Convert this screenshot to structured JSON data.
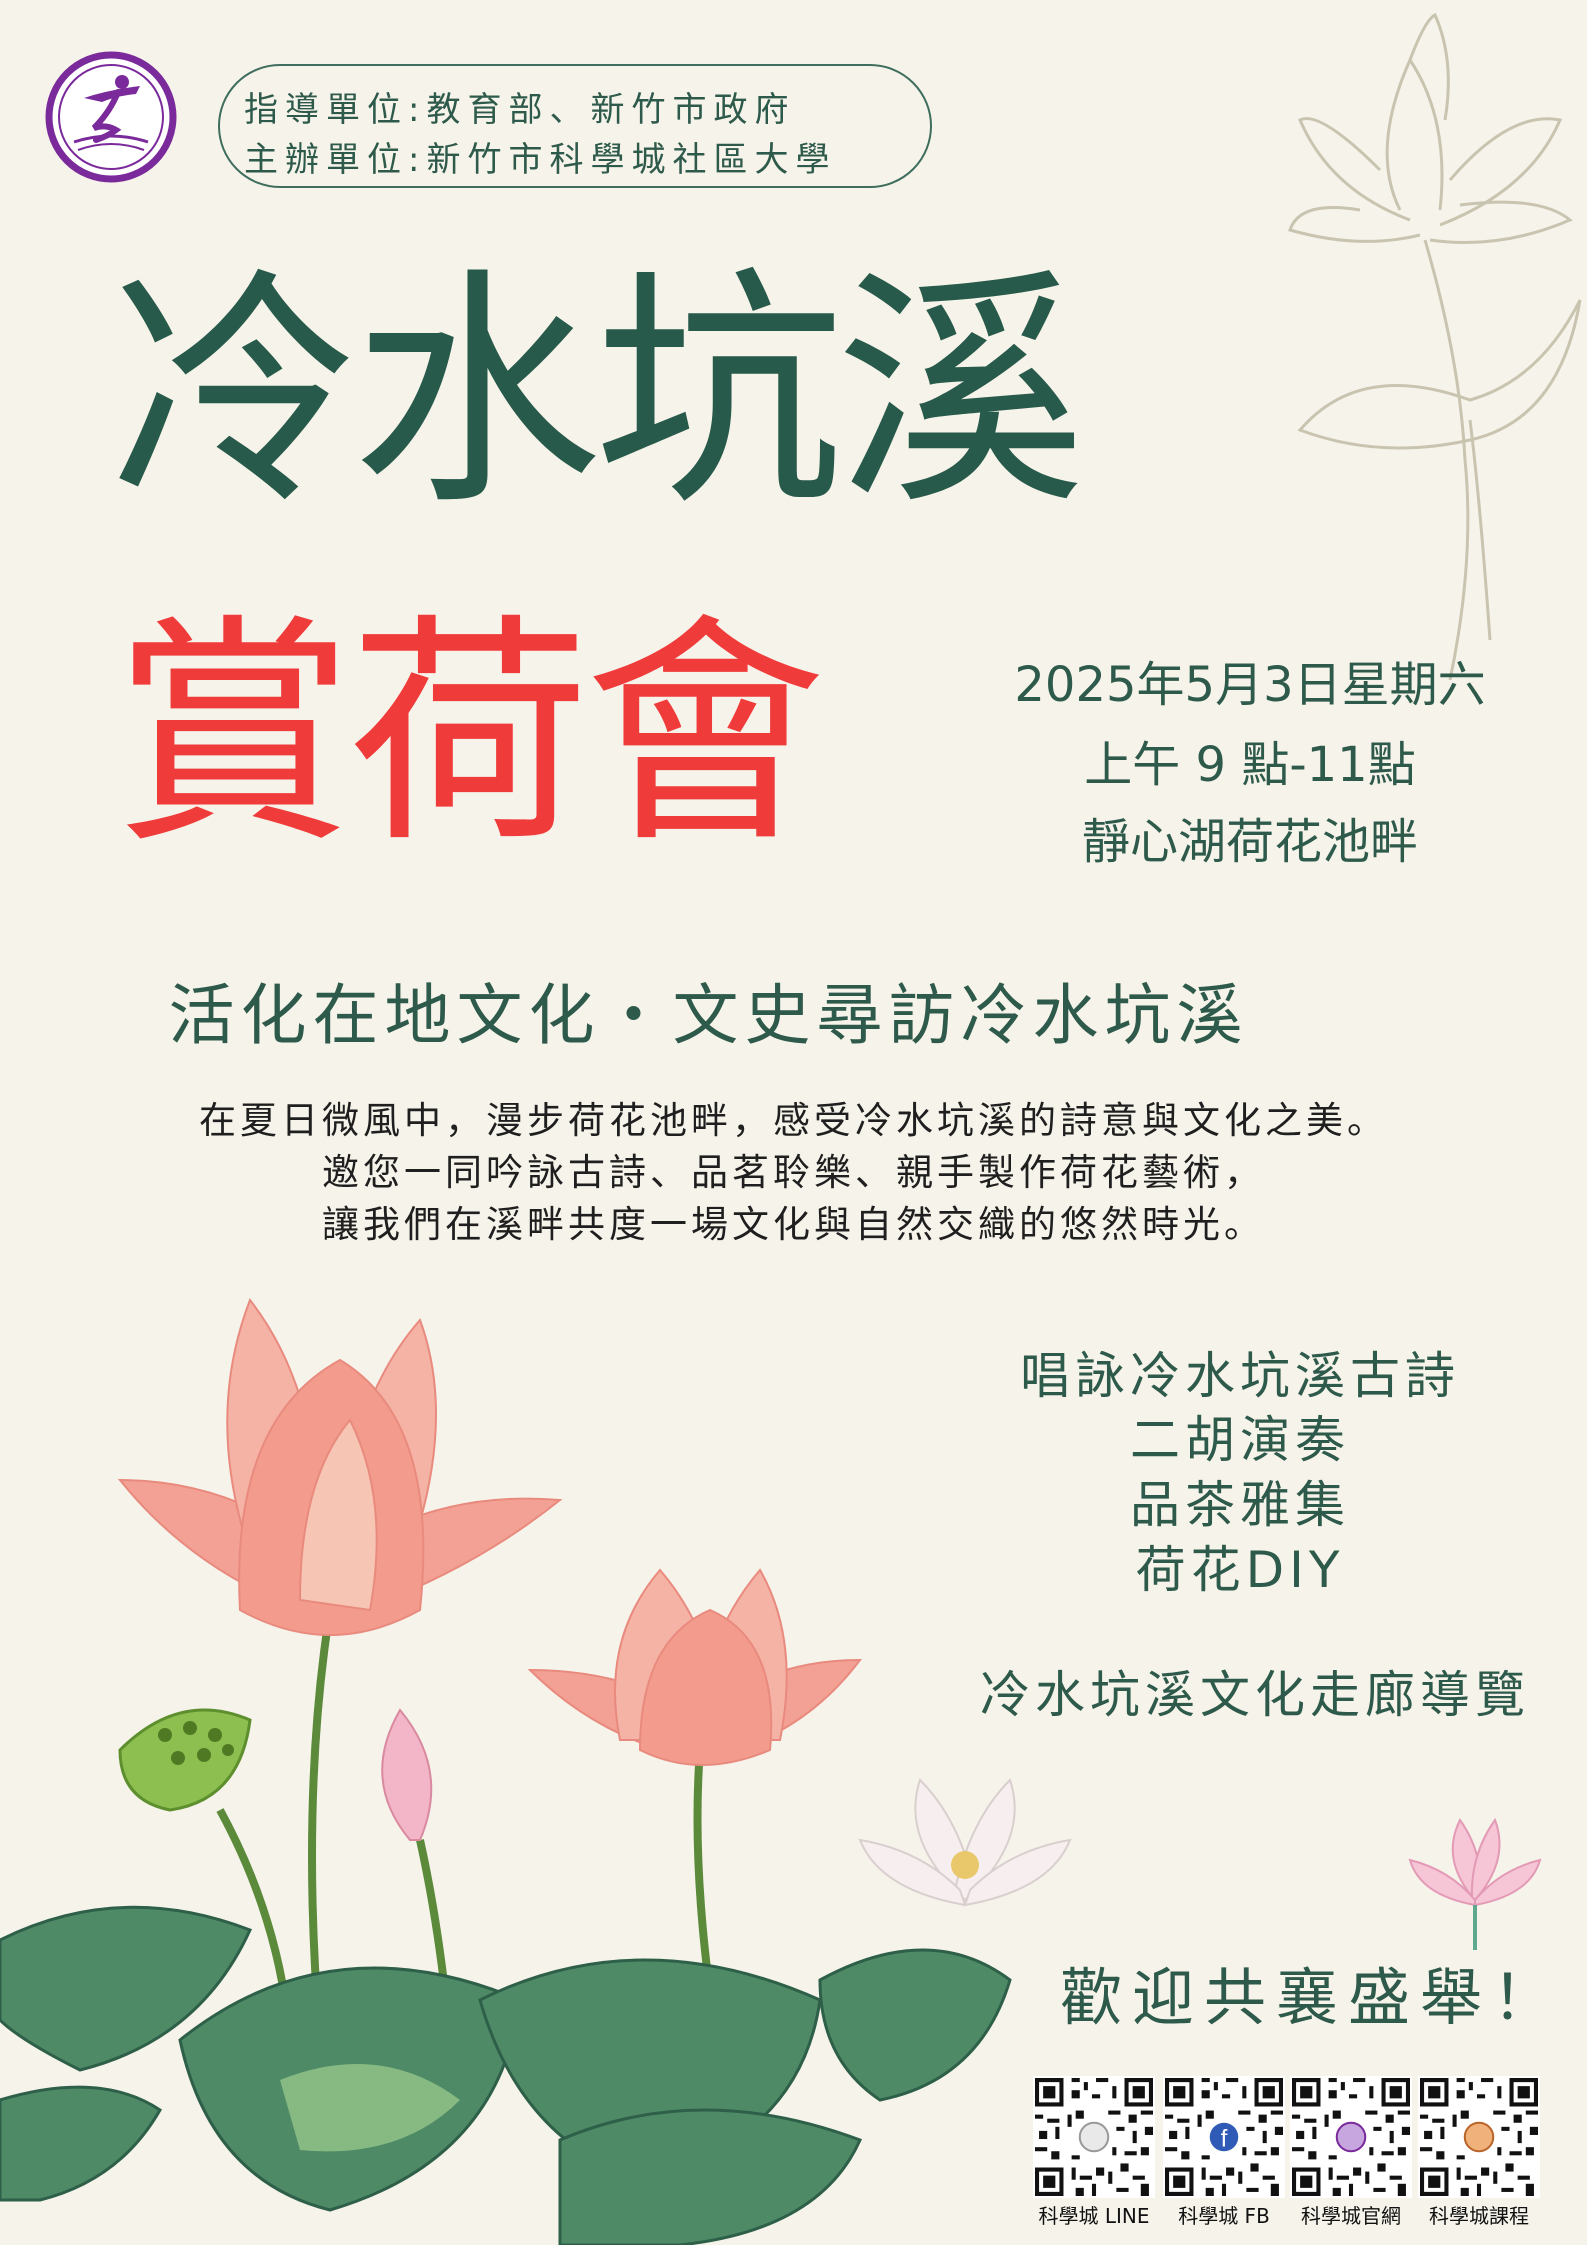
{
  "organizers": {
    "guidance": "指導單位:教育部、新竹市政府",
    "host": "主辦單位:新竹市科學城社區大學"
  },
  "title": {
    "main": "冷水坑溪",
    "sub": "賞荷會"
  },
  "event": {
    "date": "2025年5月3日星期六",
    "time": "上午 9 點-11點",
    "place": "靜心湖荷花池畔"
  },
  "subtitle": "活化在地文化・文史尋訪冷水坑溪",
  "intro": [
    "在夏日微風中，漫步荷花池畔，感受冷水坑溪的詩意與文化之美。",
    "邀您一同吟詠古詩、品茗聆樂、親手製作荷花藝術，",
    "讓我們在溪畔共度一場文化與自然交織的悠然時光。"
  ],
  "activities": [
    "唱詠冷水坑溪古詩",
    "二胡演奏",
    "品茶雅集",
    "荷花DIY",
    "冷水坑溪文化走廊導覽"
  ],
  "welcome": "歡迎共襄盛舉！",
  "qr_codes": [
    {
      "label": "科學城 LINE",
      "icon": "line-icon"
    },
    {
      "label": "科學城 FB",
      "icon": "facebook-icon"
    },
    {
      "label": "科學城官網",
      "icon": "website-icon"
    },
    {
      "label": "科學城課程",
      "icon": "course-icon"
    }
  ],
  "colors": {
    "background": "#f6f3ea",
    "green": "#2e5a4b",
    "red": "#f03b3b",
    "purple": "#7a2a9a"
  }
}
